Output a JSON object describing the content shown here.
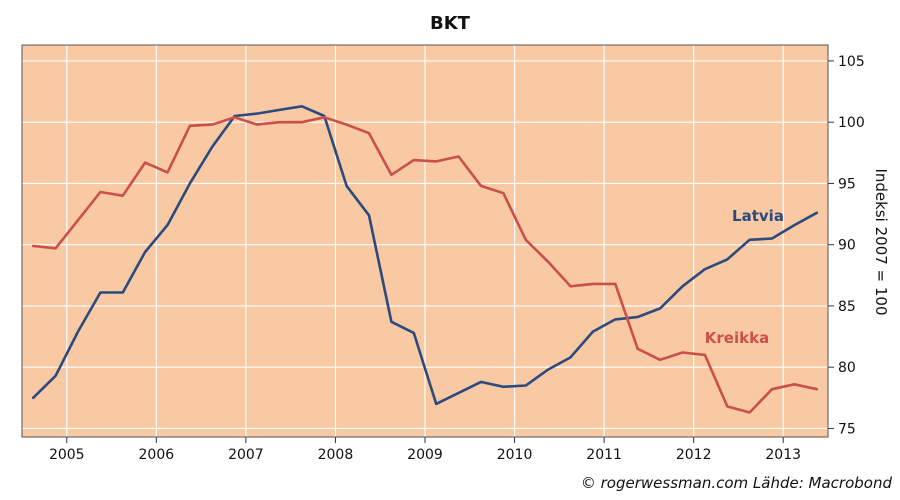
{
  "chart_data": {
    "type": "line",
    "title": "BKT",
    "xlabel": "",
    "ylabel": "Indeksi 2007 = 100",
    "credit": "© rogerwessman.com Lähde: Macrobond",
    "x_range": [
      2004.5,
      2013.5
    ],
    "ylim": [
      74.3,
      106.3
    ],
    "y_ticks": [
      75,
      80,
      85,
      90,
      95,
      100,
      105
    ],
    "x_tick_labels": [
      "2005",
      "2006",
      "2007",
      "2008",
      "2009",
      "2010",
      "2011",
      "2012",
      "2013"
    ],
    "grid": true,
    "background_color": "#f9c9a3",
    "series": [
      {
        "name": "Latvia",
        "color": "#2b4a7e",
        "x": [
          2004.625,
          2004.875,
          2005.125,
          2005.375,
          2005.625,
          2005.875,
          2006.125,
          2006.375,
          2006.625,
          2006.875,
          2007.125,
          2007.375,
          2007.625,
          2007.875,
          2008.125,
          2008.375,
          2008.625,
          2008.875,
          2009.125,
          2009.375,
          2009.625,
          2009.875,
          2010.125,
          2010.375,
          2010.625,
          2010.875,
          2011.125,
          2011.375,
          2011.625,
          2011.875,
          2012.125,
          2012.375,
          2012.625,
          2012.875,
          2013.125,
          2013.375
        ],
        "values": [
          77.5,
          79.3,
          82.9,
          86.1,
          86.1,
          89.4,
          91.6,
          95.0,
          98.0,
          100.5,
          100.7,
          101.0,
          101.3,
          100.5,
          94.8,
          92.4,
          83.7,
          82.8,
          77.0,
          77.9,
          78.8,
          78.4,
          78.5,
          79.8,
          80.8,
          82.9,
          83.9,
          84.1,
          84.8,
          86.6,
          88.0,
          88.8,
          90.4,
          90.5,
          91.6,
          92.6
        ]
      },
      {
        "name": "Kreikka",
        "color": "#c9504b",
        "x": [
          2004.625,
          2004.875,
          2005.125,
          2005.375,
          2005.625,
          2005.875,
          2006.125,
          2006.375,
          2006.625,
          2006.875,
          2007.125,
          2007.375,
          2007.625,
          2007.875,
          2008.125,
          2008.375,
          2008.625,
          2008.875,
          2009.125,
          2009.375,
          2009.625,
          2009.875,
          2010.125,
          2010.375,
          2010.625,
          2010.875,
          2011.125,
          2011.375,
          2011.625,
          2011.875,
          2012.125,
          2012.375,
          2012.625,
          2012.875,
          2013.125,
          2013.375
        ],
        "values": [
          89.9,
          89.7,
          92.0,
          94.3,
          94.0,
          96.7,
          95.9,
          99.7,
          99.8,
          100.4,
          99.8,
          100.0,
          100.0,
          100.4,
          99.8,
          99.1,
          95.7,
          96.9,
          96.8,
          97.2,
          94.8,
          94.2,
          90.4,
          88.6,
          86.6,
          86.8,
          86.8,
          81.5,
          80.6,
          81.2,
          81.0,
          76.8,
          76.3,
          78.2,
          78.6,
          78.2
        ]
      }
    ]
  }
}
